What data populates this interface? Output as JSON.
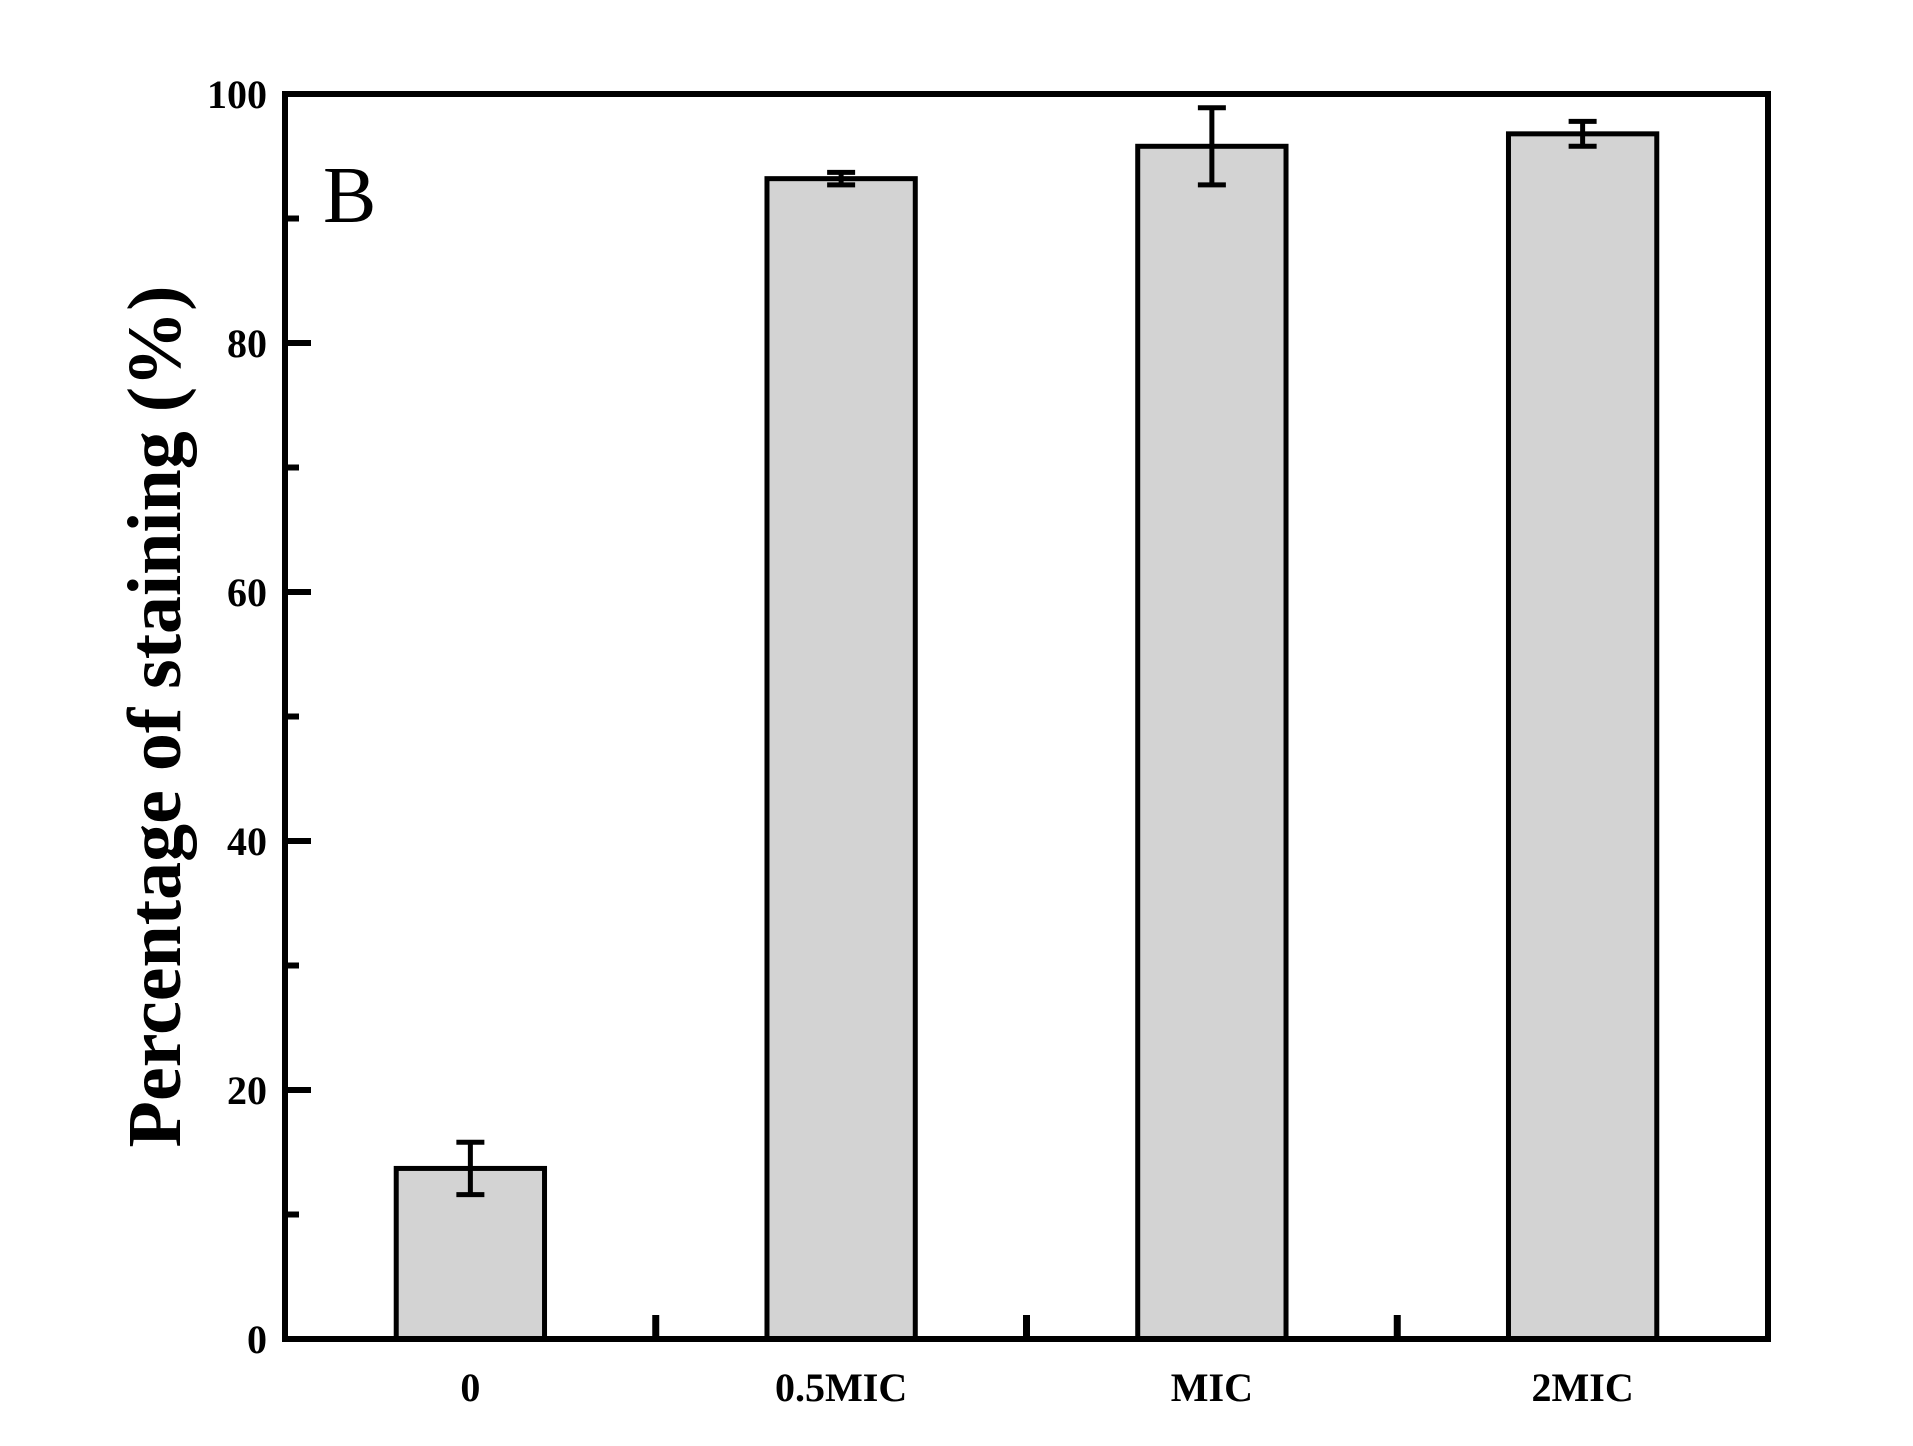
{
  "chart_data": {
    "type": "bar",
    "panel_label": "B",
    "ylabel": "Percentage of staining (%)",
    "xlabel": "",
    "categories": [
      "0",
      "0.5MIC",
      "MIC",
      "2MIC"
    ],
    "values": [
      13.7,
      93.2,
      95.8,
      96.8
    ],
    "errors": [
      2.1,
      0.5,
      3.1,
      1.0
    ],
    "ylim": [
      0,
      100
    ],
    "yticks": [
      0,
      20,
      40,
      60,
      80,
      100
    ],
    "ytick_labels": [
      "0",
      "20",
      "40",
      "60",
      "80",
      "100"
    ],
    "bar_color": "#d3d3d3",
    "edge_color": "#000000",
    "grid": false
  }
}
